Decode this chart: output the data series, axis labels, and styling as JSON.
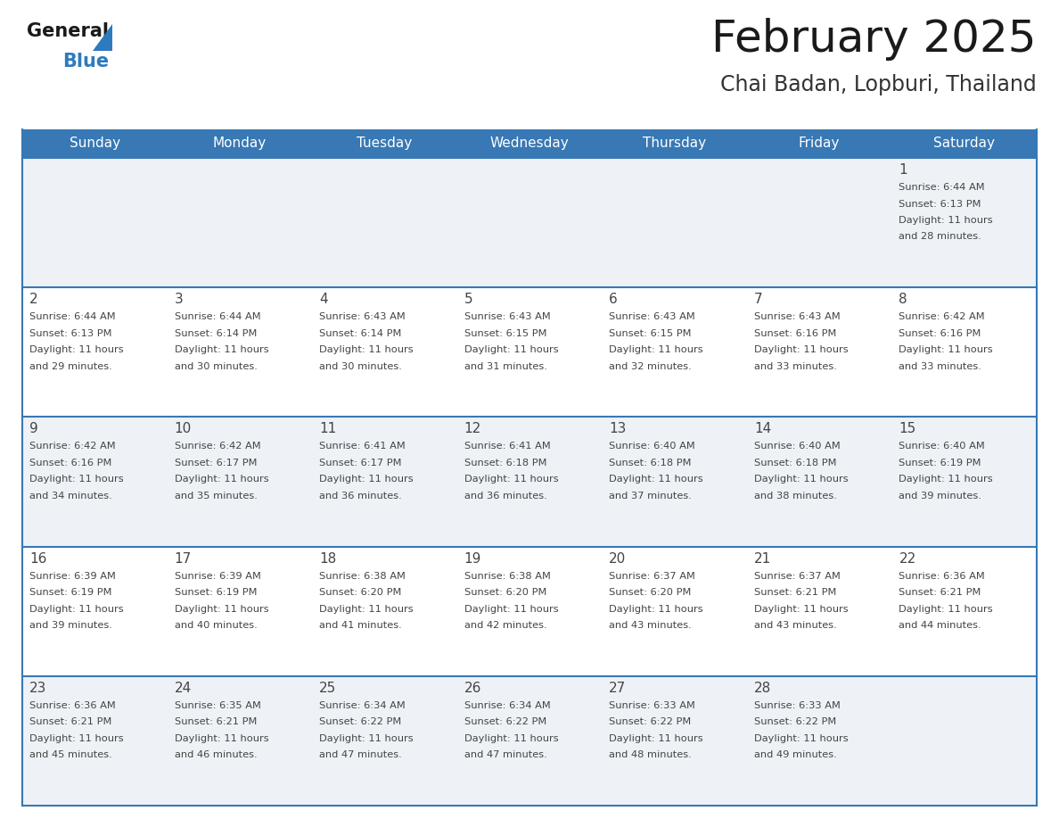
{
  "title": "February 2025",
  "subtitle": "Chai Badan, Lopburi, Thailand",
  "days_of_week": [
    "Sunday",
    "Monday",
    "Tuesday",
    "Wednesday",
    "Thursday",
    "Friday",
    "Saturday"
  ],
  "header_bg": "#3878b4",
  "header_text": "#ffffff",
  "row_bg_light": "#eef2f7",
  "row_bg_white": "#ffffff",
  "row_line_color": "#3878b4",
  "title_color": "#1a1a1a",
  "subtitle_color": "#333333",
  "day_num_color": "#444444",
  "cell_text_color": "#444444",
  "logo_text_color": "#1a1a1a",
  "logo_blue_color": "#2e7abf",
  "logo_triangle_color": "#2e7abf",
  "calendar_data": [
    [
      null,
      null,
      null,
      null,
      null,
      null,
      {
        "day": 1,
        "sunrise": "6:44 AM",
        "sunset": "6:13 PM",
        "daylight": "11 hours and 28 minutes."
      }
    ],
    [
      {
        "day": 2,
        "sunrise": "6:44 AM",
        "sunset": "6:13 PM",
        "daylight": "11 hours and 29 minutes."
      },
      {
        "day": 3,
        "sunrise": "6:44 AM",
        "sunset": "6:14 PM",
        "daylight": "11 hours and 30 minutes."
      },
      {
        "day": 4,
        "sunrise": "6:43 AM",
        "sunset": "6:14 PM",
        "daylight": "11 hours and 30 minutes."
      },
      {
        "day": 5,
        "sunrise": "6:43 AM",
        "sunset": "6:15 PM",
        "daylight": "11 hours and 31 minutes."
      },
      {
        "day": 6,
        "sunrise": "6:43 AM",
        "sunset": "6:15 PM",
        "daylight": "11 hours and 32 minutes."
      },
      {
        "day": 7,
        "sunrise": "6:43 AM",
        "sunset": "6:16 PM",
        "daylight": "11 hours and 33 minutes."
      },
      {
        "day": 8,
        "sunrise": "6:42 AM",
        "sunset": "6:16 PM",
        "daylight": "11 hours and 33 minutes."
      }
    ],
    [
      {
        "day": 9,
        "sunrise": "6:42 AM",
        "sunset": "6:16 PM",
        "daylight": "11 hours and 34 minutes."
      },
      {
        "day": 10,
        "sunrise": "6:42 AM",
        "sunset": "6:17 PM",
        "daylight": "11 hours and 35 minutes."
      },
      {
        "day": 11,
        "sunrise": "6:41 AM",
        "sunset": "6:17 PM",
        "daylight": "11 hours and 36 minutes."
      },
      {
        "day": 12,
        "sunrise": "6:41 AM",
        "sunset": "6:18 PM",
        "daylight": "11 hours and 36 minutes."
      },
      {
        "day": 13,
        "sunrise": "6:40 AM",
        "sunset": "6:18 PM",
        "daylight": "11 hours and 37 minutes."
      },
      {
        "day": 14,
        "sunrise": "6:40 AM",
        "sunset": "6:18 PM",
        "daylight": "11 hours and 38 minutes."
      },
      {
        "day": 15,
        "sunrise": "6:40 AM",
        "sunset": "6:19 PM",
        "daylight": "11 hours and 39 minutes."
      }
    ],
    [
      {
        "day": 16,
        "sunrise": "6:39 AM",
        "sunset": "6:19 PM",
        "daylight": "11 hours and 39 minutes."
      },
      {
        "day": 17,
        "sunrise": "6:39 AM",
        "sunset": "6:19 PM",
        "daylight": "11 hours and 40 minutes."
      },
      {
        "day": 18,
        "sunrise": "6:38 AM",
        "sunset": "6:20 PM",
        "daylight": "11 hours and 41 minutes."
      },
      {
        "day": 19,
        "sunrise": "6:38 AM",
        "sunset": "6:20 PM",
        "daylight": "11 hours and 42 minutes."
      },
      {
        "day": 20,
        "sunrise": "6:37 AM",
        "sunset": "6:20 PM",
        "daylight": "11 hours and 43 minutes."
      },
      {
        "day": 21,
        "sunrise": "6:37 AM",
        "sunset": "6:21 PM",
        "daylight": "11 hours and 43 minutes."
      },
      {
        "day": 22,
        "sunrise": "6:36 AM",
        "sunset": "6:21 PM",
        "daylight": "11 hours and 44 minutes."
      }
    ],
    [
      {
        "day": 23,
        "sunrise": "6:36 AM",
        "sunset": "6:21 PM",
        "daylight": "11 hours and 45 minutes."
      },
      {
        "day": 24,
        "sunrise": "6:35 AM",
        "sunset": "6:21 PM",
        "daylight": "11 hours and 46 minutes."
      },
      {
        "day": 25,
        "sunrise": "6:34 AM",
        "sunset": "6:22 PM",
        "daylight": "11 hours and 47 minutes."
      },
      {
        "day": 26,
        "sunrise": "6:34 AM",
        "sunset": "6:22 PM",
        "daylight": "11 hours and 47 minutes."
      },
      {
        "day": 27,
        "sunrise": "6:33 AM",
        "sunset": "6:22 PM",
        "daylight": "11 hours and 48 minutes."
      },
      {
        "day": 28,
        "sunrise": "6:33 AM",
        "sunset": "6:22 PM",
        "daylight": "11 hours and 49 minutes."
      },
      null
    ]
  ]
}
